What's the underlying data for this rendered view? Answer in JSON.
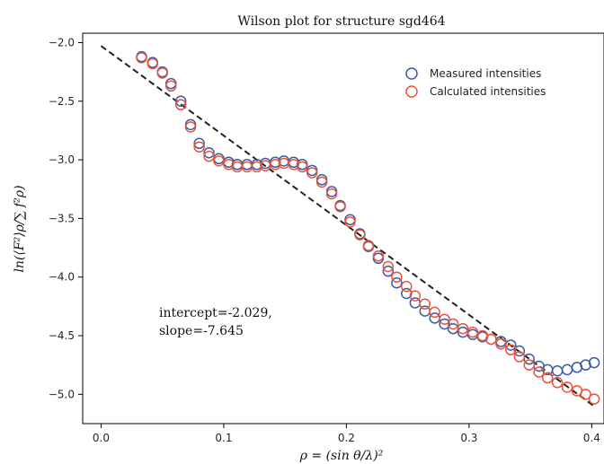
{
  "chart_data": {
    "type": "scatter",
    "title": "Wilson plot for structure sgd464",
    "xlabel": "ρ = (sin θ/λ)²",
    "ylabel": "ln(⟨F²⟩ρ/∑ f²ρ)",
    "xlim": [
      -0.015,
      0.41
    ],
    "ylim": [
      -5.25,
      -1.92
    ],
    "x_ticks": [
      0.0,
      0.1,
      0.2,
      0.3,
      0.4
    ],
    "x_tick_labels": [
      "0.0",
      "0.1",
      "0.2",
      "0.3",
      "0.4"
    ],
    "y_ticks": [
      -2.0,
      -2.5,
      -3.0,
      -3.5,
      -4.0,
      -4.5,
      -5.0
    ],
    "y_tick_labels": [
      "−2.0",
      "−2.5",
      "−3.0",
      "−3.5",
      "−4.0",
      "−4.5",
      "−5.0"
    ],
    "legend_position": "top-right",
    "grid": false,
    "series": [
      {
        "name": "Measured intensities",
        "color": "#3b5ba5",
        "marker": "open-circle",
        "x": [
          0.033,
          0.042,
          0.05,
          0.057,
          0.065,
          0.073,
          0.08,
          0.088,
          0.096,
          0.104,
          0.111,
          0.119,
          0.127,
          0.134,
          0.142,
          0.149,
          0.157,
          0.164,
          0.172,
          0.18,
          0.188,
          0.195,
          0.203,
          0.211,
          0.218,
          0.226,
          0.234,
          0.241,
          0.249,
          0.256,
          0.264,
          0.272,
          0.28,
          0.287,
          0.295,
          0.303,
          0.311,
          0.318,
          0.326,
          0.334,
          0.341,
          0.349,
          0.357,
          0.364,
          0.372,
          0.38,
          0.388,
          0.395,
          0.402
        ],
        "y": [
          -2.12,
          -2.17,
          -2.25,
          -2.35,
          -2.5,
          -2.7,
          -2.86,
          -2.94,
          -2.99,
          -3.02,
          -3.04,
          -3.04,
          -3.04,
          -3.03,
          -3.02,
          -3.01,
          -3.02,
          -3.04,
          -3.09,
          -3.17,
          -3.27,
          -3.39,
          -3.51,
          -3.63,
          -3.74,
          -3.84,
          -3.95,
          -4.05,
          -4.14,
          -4.22,
          -4.29,
          -4.35,
          -4.4,
          -4.44,
          -4.47,
          -4.49,
          -4.51,
          -4.53,
          -4.55,
          -4.58,
          -4.63,
          -4.7,
          -4.76,
          -4.79,
          -4.8,
          -4.79,
          -4.77,
          -4.75,
          -4.73
        ]
      },
      {
        "name": "Calculated intensities",
        "color": "#e8553a",
        "marker": "open-circle",
        "x": [
          0.033,
          0.042,
          0.05,
          0.057,
          0.065,
          0.073,
          0.08,
          0.088,
          0.096,
          0.104,
          0.111,
          0.119,
          0.127,
          0.134,
          0.142,
          0.149,
          0.157,
          0.164,
          0.172,
          0.18,
          0.188,
          0.195,
          0.203,
          0.211,
          0.218,
          0.226,
          0.234,
          0.241,
          0.249,
          0.256,
          0.264,
          0.272,
          0.28,
          0.287,
          0.295,
          0.303,
          0.311,
          0.318,
          0.326,
          0.334,
          0.341,
          0.349,
          0.357,
          0.364,
          0.372,
          0.38,
          0.388,
          0.395,
          0.402
        ],
        "y": [
          -2.13,
          -2.18,
          -2.26,
          -2.37,
          -2.53,
          -2.72,
          -2.89,
          -2.97,
          -3.01,
          -3.04,
          -3.06,
          -3.06,
          -3.06,
          -3.05,
          -3.04,
          -3.03,
          -3.04,
          -3.06,
          -3.11,
          -3.19,
          -3.29,
          -3.4,
          -3.53,
          -3.64,
          -3.73,
          -3.82,
          -3.91,
          -4.0,
          -4.08,
          -4.16,
          -4.23,
          -4.3,
          -4.36,
          -4.4,
          -4.44,
          -4.47,
          -4.5,
          -4.53,
          -4.57,
          -4.62,
          -4.68,
          -4.75,
          -4.81,
          -4.86,
          -4.9,
          -4.94,
          -4.97,
          -5.0,
          -5.04
        ]
      }
    ],
    "fit_line": {
      "style": "dashed",
      "color": "#222222",
      "x": [
        0.0,
        0.402
      ],
      "y": [
        -2.029,
        -5.102
      ]
    },
    "annotation_lines": [
      "intercept=-2.029,",
      "slope=-7.645"
    ],
    "annotation_anchor": {
      "x": 0.05,
      "y": -4.3
    }
  }
}
